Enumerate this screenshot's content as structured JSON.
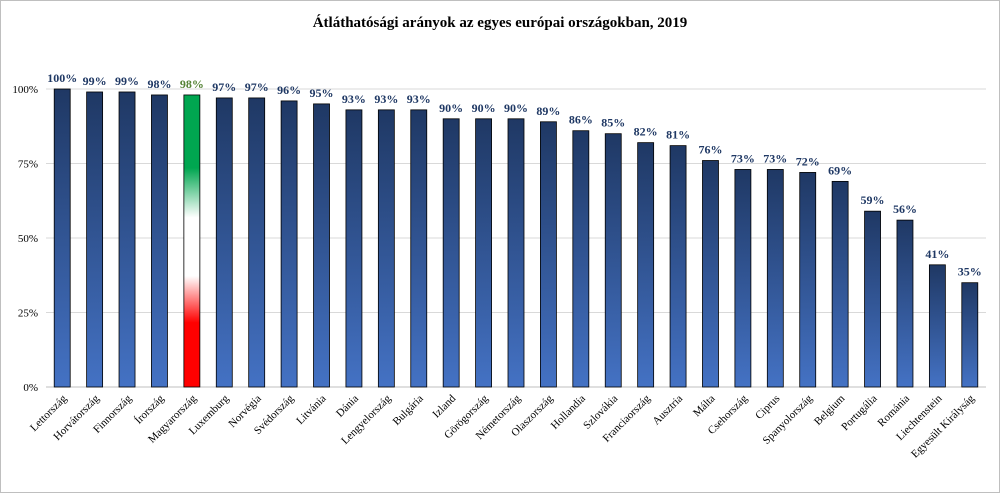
{
  "chart_data": {
    "type": "bar",
    "title": "Átláthatósági arányok az egyes európai országokban, 2019",
    "xlabel": "",
    "ylabel": "",
    "ylim": [
      0,
      100
    ],
    "yticks": [
      "0%",
      "25%",
      "50%",
      "75%",
      "100%"
    ],
    "ytick_values": [
      0,
      25,
      50,
      75,
      100
    ],
    "grid": true,
    "legend": "none",
    "categories": [
      "Lettország",
      "Horvátország",
      "Finnország",
      "Írország",
      "Magyarország",
      "Luxemburg",
      "Norvégia",
      "Svédország",
      "Litvánia",
      "Dánia",
      "Lengyelország",
      "Bulgária",
      "Izland",
      "Görögország",
      "Németország",
      "Olaszország",
      "Hollandia",
      "Szlovákia",
      "Franciaország",
      "Ausztria",
      "Málta",
      "Csehország",
      "Ciprus",
      "Spanyolország",
      "Belgium",
      "Portugália",
      "Románia",
      "Liechtenstein",
      "Egyesült Királyság"
    ],
    "values": [
      100,
      99,
      99,
      98,
      98,
      97,
      97,
      96,
      95,
      93,
      93,
      93,
      90,
      90,
      90,
      89,
      86,
      85,
      82,
      81,
      76,
      73,
      73,
      72,
      69,
      59,
      56,
      41,
      35
    ],
    "data_labels": [
      "100%",
      "99%",
      "99%",
      "98%",
      "98%",
      "97%",
      "97%",
      "96%",
      "95%",
      "93%",
      "93%",
      "93%",
      "90%",
      "90%",
      "90%",
      "89%",
      "86%",
      "85%",
      "82%",
      "81%",
      "76%",
      "73%",
      "73%",
      "72%",
      "69%",
      "59%",
      "56%",
      "41%",
      "35%"
    ],
    "highlight_index": 4,
    "colors": {
      "bar_top": "#1f3864",
      "bar_bottom": "#4472c4",
      "bar_stroke": "#000000",
      "label": "#1f3864",
      "highlight_label": "#548235",
      "flag_red": "#ff0000",
      "flag_white": "#ffffff",
      "flag_green": "#00a650",
      "grid": "#d9d9d9",
      "axis": "#bfbfbf"
    }
  }
}
